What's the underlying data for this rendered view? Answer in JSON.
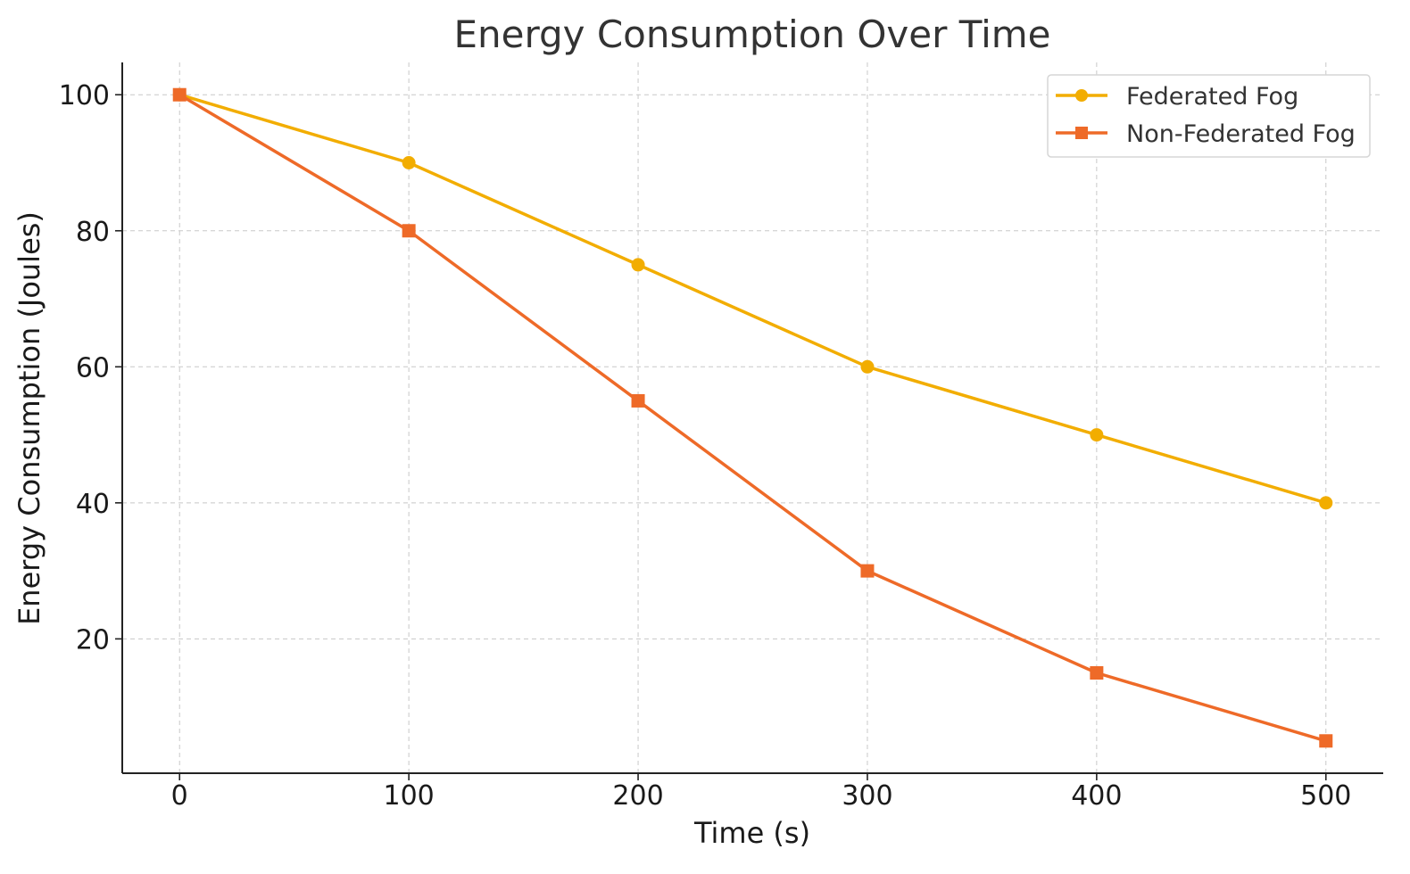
{
  "chart_data": {
    "type": "line",
    "title": "Energy Consumption Over Time",
    "xlabel": "Time (s)",
    "ylabel": "Energy Consumption (Joules)",
    "x": [
      0,
      100,
      200,
      300,
      400,
      500
    ],
    "xticks": [
      0,
      100,
      200,
      300,
      400,
      500
    ],
    "yticks": [
      20,
      40,
      60,
      80,
      100
    ],
    "xlim": [
      -25,
      525
    ],
    "ylim": [
      0.25,
      104.75
    ],
    "grid": true,
    "legend_position": "top-right",
    "series": [
      {
        "name": "Federated Fog",
        "values": [
          100,
          90,
          75,
          60,
          50,
          40
        ],
        "color": "#f2ad00",
        "marker": "circle"
      },
      {
        "name": "Non-Federated Fog",
        "values": [
          100,
          80,
          55,
          30,
          15,
          5
        ],
        "color": "#ee6a28",
        "marker": "square"
      }
    ]
  }
}
